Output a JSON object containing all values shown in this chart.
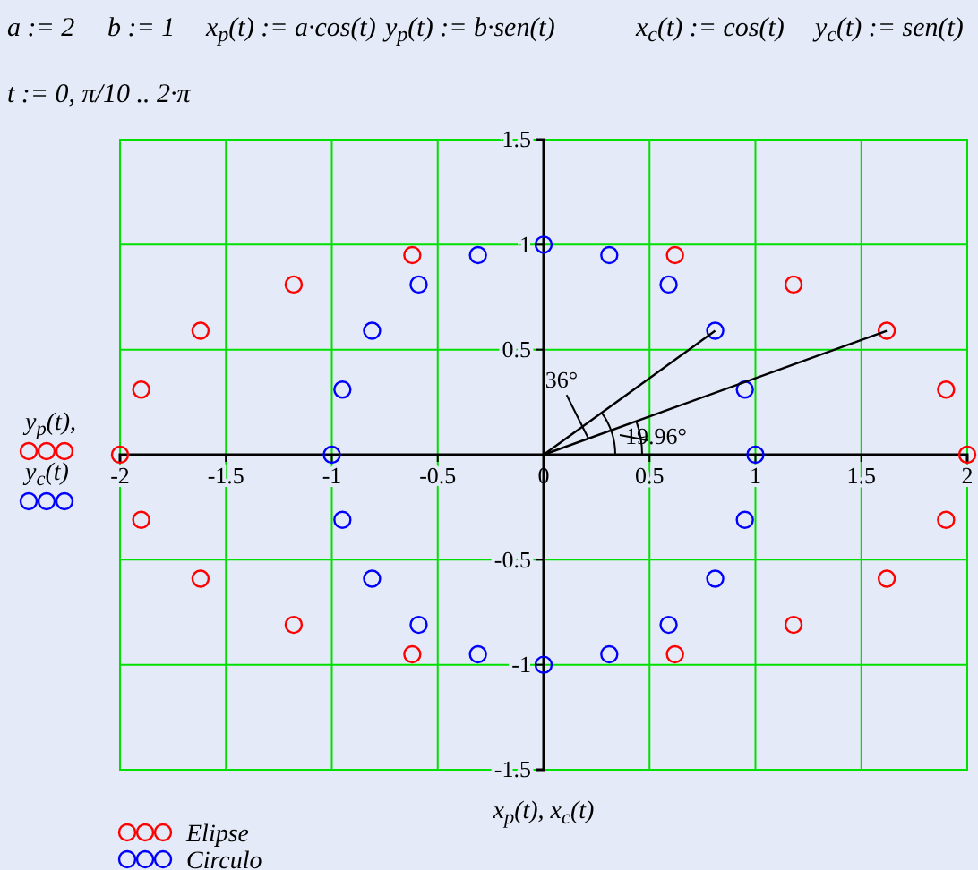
{
  "chart_data": {
    "type": "scatter",
    "xlabel": "x$_{p}$(t), x$_{c}$(t)",
    "ylabel": "y$_{p}$(t), y$_{c}$(t)",
    "annotations": [
      "a := 2",
      "b := 1",
      "x$_{p}$(t) := a·cos(t)",
      "y$_{p}$(t) := b·sen(t)",
      "x$_{c}$(t) := cos(t)",
      "y$_{c}$(t) := sen(t)",
      "t := 0, π/10 .. 2·π",
      {
        "text": "36°",
        "x": 0.21,
        "y": 0.08
      },
      "19.96°"
    ],
    "xlim": [
      -2,
      2
    ],
    "ylim": [
      -1.5,
      1.5
    ],
    "xticks": [
      -2,
      -1.5,
      -1,
      -0.5,
      0,
      0.5,
      1,
      1.5,
      2
    ],
    "yticks": [
      -1.5,
      -1,
      -0.5,
      {
        "value": 0,
        "label": null
      },
      0.5,
      1,
      1.5
    ],
    "grid": true,
    "legend": "bottom left",
    "marker": "circle",
    "series": [
      {
        "name": "Elipse",
        "color": "#ff0000",
        "x": [
          2,
          1.9,
          1.62,
          1.18,
          0.62,
          null,
          -0.62,
          -1.18,
          -1.62,
          -1.9,
          -2,
          -1.9,
          -1.62,
          -1.18,
          -0.62,
          null,
          0.62,
          1.18,
          1.62,
          1.9
        ],
        "values": [
          0,
          0.31,
          0.59,
          0.81,
          0.95,
          null,
          0.95,
          0.81,
          0.59,
          0.31,
          0,
          -0.31,
          -0.59,
          -0.81,
          -0.95,
          null,
          -0.95,
          -0.81,
          -0.59,
          -0.31
        ]
      },
      {
        "name": "Circulo",
        "color": "#0000ff",
        "x": [
          1,
          0.95,
          0.81,
          0.59,
          0.31,
          0,
          -0.31,
          -0.59,
          -0.81,
          -0.95,
          -1,
          -0.95,
          -0.81,
          -0.59,
          -0.31,
          0,
          0.31,
          0.59,
          0.81,
          0.95
        ],
        "values": [
          0,
          0.31,
          0.59,
          0.81,
          0.95,
          1,
          0.95,
          0.81,
          0.59,
          0.31,
          0,
          -0.31,
          -0.59,
          -0.81,
          -0.95,
          -1,
          -0.95,
          -0.81,
          -0.59,
          -0.31
        ]
      },
      {
        "type": "line",
        "color": "#000000",
        "marker": "none",
        "x": [
          0,
          0.81
        ],
        "values": [
          0,
          0.59
        ]
      },
      {
        "type": "line",
        "color": "#000000",
        "marker": "none",
        "x": [
          0,
          1.62
        ],
        "values": [
          0,
          0.59
        ]
      }
    ]
  }
}
